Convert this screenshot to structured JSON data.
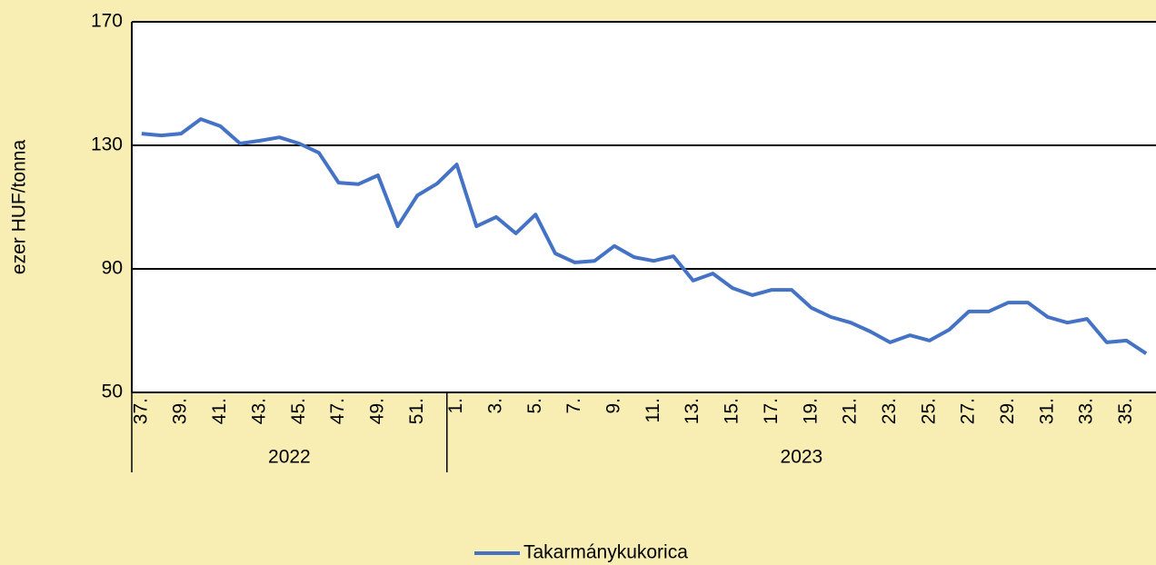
{
  "chart_data": {
    "type": "line",
    "ylabel": "ezer HUF/tonna",
    "categories": [
      "37.",
      null,
      "39.",
      null,
      "41.",
      null,
      "43.",
      null,
      "45.",
      null,
      "47.",
      null,
      "49.",
      null,
      "51.",
      null,
      "1.",
      null,
      "3.",
      null,
      "5.",
      null,
      "7.",
      null,
      "9.",
      null,
      "11.",
      null,
      "13.",
      null,
      "15.",
      null,
      "17.",
      null,
      "19.",
      null,
      "21.",
      null,
      "23.",
      null,
      "25.",
      null,
      "27.",
      null,
      "29.",
      null,
      "31.",
      null,
      "33.",
      null,
      "35.",
      null
    ],
    "groups": [
      {
        "name": "2022",
        "count": 16
      },
      {
        "name": "2023",
        "count": 36
      }
    ],
    "series": [
      {
        "name": "Takarmánykukorica",
        "color": "#4472c4",
        "values": [
          133.8,
          133.2,
          133.8,
          138.5,
          136.2,
          130.6,
          131.5,
          132.6,
          130.6,
          127.6,
          117.9,
          117.4,
          120.3,
          103.8,
          113.8,
          117.6,
          123.8,
          103.8,
          106.8,
          101.5,
          107.6,
          95.0,
          92.1,
          92.6,
          97.4,
          93.8,
          92.6,
          94.1,
          86.2,
          88.5,
          83.8,
          81.5,
          83.2,
          83.2,
          77.4,
          74.4,
          72.6,
          69.7,
          66.2,
          68.5,
          66.8,
          70.3,
          76.2,
          76.2,
          79.1,
          79.1,
          74.4,
          72.6,
          73.8,
          66.2,
          66.8,
          62.6
        ]
      }
    ],
    "ylim": [
      50,
      170
    ],
    "yticks": [
      50,
      90,
      130,
      170
    ],
    "grid": true,
    "legend": "bottom"
  }
}
